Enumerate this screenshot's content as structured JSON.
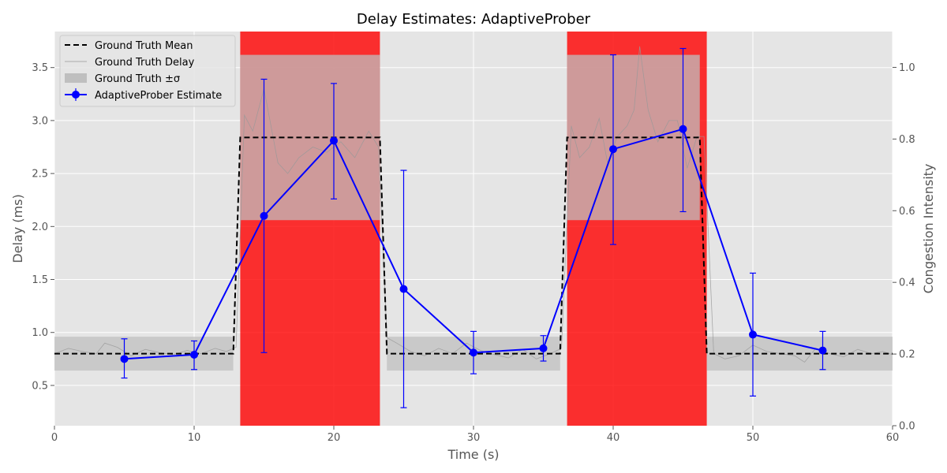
{
  "chart_data": {
    "type": "line",
    "title": "Delay Estimates: AdaptiveProber",
    "xlabel": "Time (s)",
    "ylabel": "Delay (ms)",
    "y2label": "Congestion Intensity",
    "xlim": [
      0,
      60
    ],
    "ylim": [
      0.12,
      3.84
    ],
    "y2lim": [
      0,
      1.1
    ],
    "x_ticks": [
      0,
      10,
      20,
      30,
      40,
      50,
      60
    ],
    "y_ticks": [
      0.5,
      1.0,
      1.5,
      2.0,
      2.5,
      3.0,
      3.5
    ],
    "y2_ticks": [
      0.0,
      0.2,
      0.4,
      0.6,
      0.8,
      1.0
    ],
    "grid": true,
    "legend_position": "top-left",
    "colors": {
      "axes_bg": "#e5e5e5",
      "grid": "#ffffff",
      "congestion": "#ff0000",
      "truth_mean": "#000000",
      "truth_delay": "#999999",
      "truth_band": "#bfbfbf",
      "estimate": "#0000ff"
    },
    "congestion": [
      {
        "start": 13.3,
        "end": 23.3,
        "intensity": 1.0
      },
      {
        "start": 36.7,
        "end": 46.7,
        "intensity": 1.0
      }
    ],
    "ground_truth_mean": {
      "name": "Ground Truth Mean",
      "x": [
        0,
        12.8,
        13.3,
        23.3,
        23.8,
        36.2,
        36.7,
        46.2,
        46.7,
        60
      ],
      "y": [
        0.8,
        0.8,
        2.84,
        2.84,
        0.8,
        0.8,
        2.84,
        2.84,
        0.8,
        0.8
      ]
    },
    "ground_truth_band": {
      "name": "Ground Truth ±σ",
      "segments": [
        {
          "x0": 0,
          "x1": 12.8,
          "lo": 0.64,
          "hi": 0.96
        },
        {
          "x0": 13.3,
          "x1": 23.3,
          "lo": 2.06,
          "hi": 3.62
        },
        {
          "x0": 23.8,
          "x1": 36.2,
          "lo": 0.64,
          "hi": 0.96
        },
        {
          "x0": 36.7,
          "x1": 46.2,
          "lo": 2.06,
          "hi": 3.62
        },
        {
          "x0": 46.7,
          "x1": 60,
          "lo": 0.64,
          "hi": 0.96
        }
      ]
    },
    "ground_truth_delay": {
      "name": "Ground Truth Delay",
      "x": [
        0,
        1,
        2,
        3,
        3.6,
        4.5,
        5.5,
        6.5,
        7.5,
        8.5,
        9.5,
        10.5,
        11.5,
        12.3,
        13.0,
        13.6,
        14.2,
        15.0,
        16.0,
        16.7,
        17.5,
        18.5,
        19.5,
        20.5,
        21.5,
        22.5,
        23.2,
        23.8,
        24.5,
        25.5,
        26.5,
        27.5,
        28.5,
        29.5,
        30.5,
        31.5,
        32.5,
        33.5,
        34.5,
        35.5,
        36.3,
        37.0,
        37.6,
        38.3,
        39.0,
        39.6,
        40.3,
        41.0,
        41.5,
        41.9,
        42.5,
        43.2,
        44.0,
        44.6,
        45.3,
        46.0,
        46.5,
        47.2,
        48.0,
        49.0,
        50.0,
        51.0,
        52.0,
        53.0,
        53.7,
        54.5,
        55.5,
        56.5,
        57.5,
        58.5,
        59.3,
        60
      ],
      "y": [
        0.8,
        0.85,
        0.82,
        0.8,
        0.9,
        0.86,
        0.78,
        0.84,
        0.81,
        0.79,
        0.83,
        0.8,
        0.85,
        0.82,
        0.86,
        3.05,
        2.9,
        3.3,
        2.6,
        2.5,
        2.65,
        2.75,
        2.7,
        2.8,
        2.65,
        2.9,
        2.75,
        0.95,
        0.9,
        0.82,
        0.78,
        0.85,
        0.8,
        0.9,
        0.83,
        0.79,
        0.76,
        0.84,
        0.75,
        0.8,
        0.85,
        2.95,
        2.65,
        2.75,
        3.02,
        2.6,
        2.85,
        2.95,
        3.1,
        3.7,
        3.1,
        2.8,
        3.0,
        3.0,
        2.55,
        2.85,
        2.85,
        0.8,
        0.75,
        0.78,
        0.88,
        0.82,
        0.8,
        0.78,
        0.72,
        0.85,
        0.8,
        0.77,
        0.84,
        0.8,
        0.82,
        0.79
      ]
    },
    "estimate": {
      "name": "AdaptiveProber Estimate",
      "x": [
        5,
        10,
        15,
        20,
        25,
        30,
        35,
        40,
        45,
        50,
        55
      ],
      "y": [
        0.75,
        0.79,
        2.1,
        2.81,
        1.41,
        0.81,
        0.85,
        2.73,
        2.92,
        0.98,
        0.83
      ],
      "err_lo": [
        0.57,
        0.65,
        0.81,
        2.26,
        0.29,
        0.61,
        0.73,
        1.83,
        2.14,
        0.4,
        0.65
      ],
      "err_hi": [
        0.94,
        0.92,
        3.39,
        3.35,
        2.53,
        1.01,
        0.97,
        3.62,
        3.68,
        1.56,
        1.01
      ]
    }
  }
}
